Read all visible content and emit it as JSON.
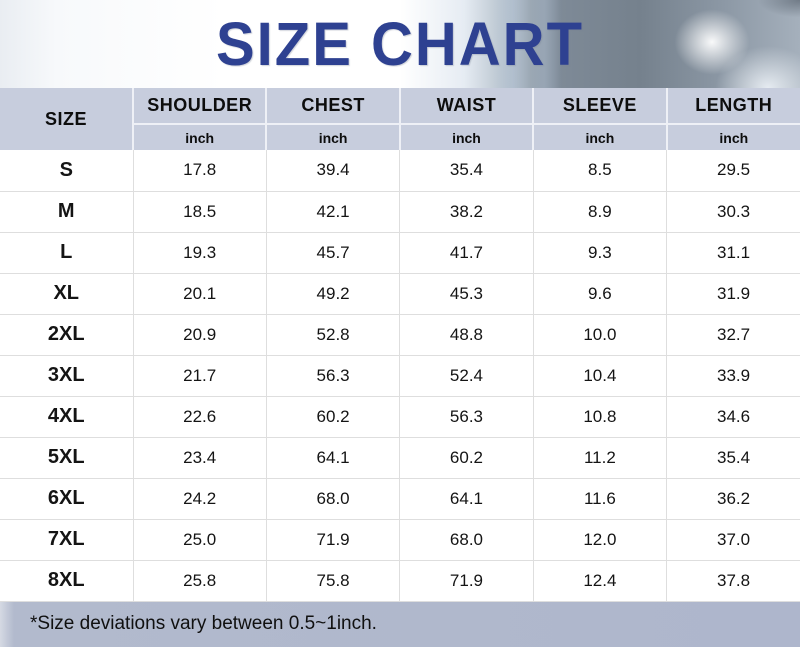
{
  "title": "SIZE CHART",
  "colors": {
    "title_blue": "#2e4191",
    "header_bg": "#c7cddd",
    "footer_bg": "#aeb6cc",
    "body_bg": "#ffffff",
    "text": "#111111"
  },
  "chart_data": {
    "type": "table",
    "title": "SIZE CHART",
    "corner_header": "SIZE",
    "measure_columns": [
      "SHOULDER",
      "CHEST",
      "WAIST",
      "SLEEVE",
      "LENGTH"
    ],
    "unit_label": "inch",
    "rows": [
      {
        "size": "S",
        "values": [
          "17.8",
          "39.4",
          "35.4",
          "8.5",
          "29.5"
        ]
      },
      {
        "size": "M",
        "values": [
          "18.5",
          "42.1",
          "38.2",
          "8.9",
          "30.3"
        ]
      },
      {
        "size": "L",
        "values": [
          "19.3",
          "45.7",
          "41.7",
          "9.3",
          "31.1"
        ]
      },
      {
        "size": "XL",
        "values": [
          "20.1",
          "49.2",
          "45.3",
          "9.6",
          "31.9"
        ]
      },
      {
        "size": "2XL",
        "values": [
          "20.9",
          "52.8",
          "48.8",
          "10.0",
          "32.7"
        ]
      },
      {
        "size": "3XL",
        "values": [
          "21.7",
          "56.3",
          "52.4",
          "10.4",
          "33.9"
        ]
      },
      {
        "size": "4XL",
        "values": [
          "22.6",
          "60.2",
          "56.3",
          "10.8",
          "34.6"
        ]
      },
      {
        "size": "5XL",
        "values": [
          "23.4",
          "64.1",
          "60.2",
          "11.2",
          "35.4"
        ]
      },
      {
        "size": "6XL",
        "values": [
          "24.2",
          "68.0",
          "64.1",
          "11.6",
          "36.2"
        ]
      },
      {
        "size": "7XL",
        "values": [
          "25.0",
          "71.9",
          "68.0",
          "12.0",
          "37.0"
        ]
      },
      {
        "size": "8XL",
        "values": [
          "25.8",
          "75.8",
          "71.9",
          "12.4",
          "37.8"
        ]
      }
    ],
    "footnote": "*Size deviations vary between 0.5~1inch."
  }
}
